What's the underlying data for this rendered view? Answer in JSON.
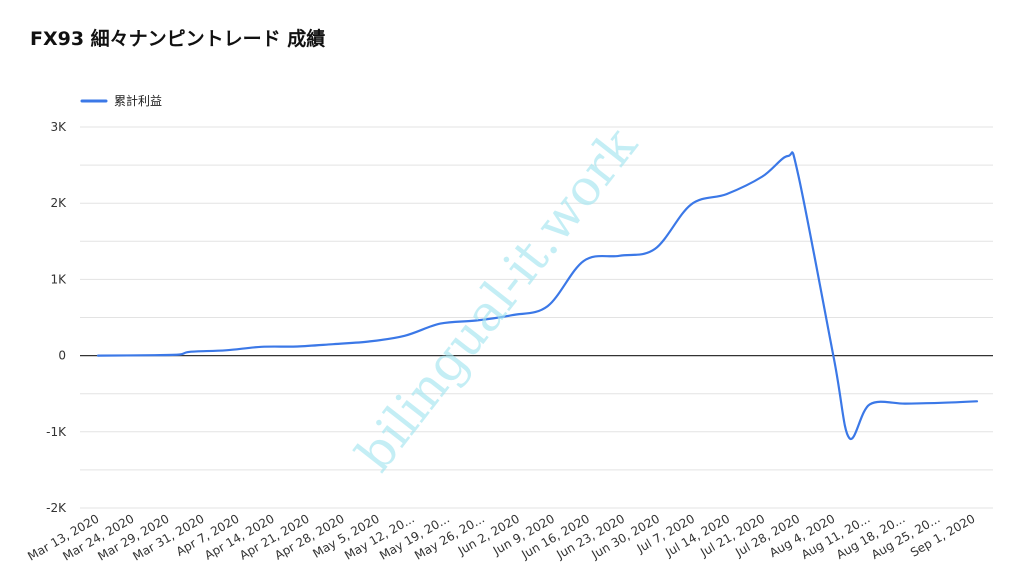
{
  "chart_data": {
    "type": "line",
    "title": "FX93 細々ナンピントレード 成績",
    "xlabel": "",
    "ylabel": "",
    "legend_position": "top-left",
    "grid": true,
    "ylim": [
      -2000,
      3000
    ],
    "y_ticks": [
      {
        "value": 3000,
        "label": "3K"
      },
      {
        "value": 2000,
        "label": "2K"
      },
      {
        "value": 1000,
        "label": "1K"
      },
      {
        "value": 0,
        "label": "0"
      },
      {
        "value": -1000,
        "label": "-1K"
      },
      {
        "value": -2000,
        "label": "-2K"
      }
    ],
    "x_tick_labels": [
      "Mar 13, 2020",
      "Mar 24, 2020",
      "Mar 29, 2020",
      "Mar 31, 2020",
      "Apr 7, 2020",
      "Apr 14, 2020",
      "Apr 21, 2020",
      "Apr 28, 2020",
      "May 5, 2020",
      "May 12, 20...",
      "May 19, 20...",
      "May 26, 20...",
      "Jun 2, 2020",
      "Jun 9, 2020",
      "Jun 16, 2020",
      "Jun 23, 2020",
      "Jun 30, 2020",
      "Jul 7, 2020",
      "Jul 14, 2020",
      "Jul 21, 2020",
      "Jul 28, 2020",
      "Aug 4, 2020",
      "Aug 11, 20...",
      "Aug 18, 20...",
      "Aug 25, 20...",
      "Sep 1, 2020"
    ],
    "series": [
      {
        "name": "累計利益",
        "color": "#3b78e7",
        "points": [
          {
            "x": "Mar 13, 2020",
            "y": 0
          },
          {
            "x": "Mar 24, 2020",
            "y": 5
          },
          {
            "x": "Mar 29, 2020",
            "y": 15
          },
          {
            "x": "Mar 31, 2020",
            "y": 50
          },
          {
            "x": "Apr 7, 2020",
            "y": 70
          },
          {
            "x": "Apr 14, 2020",
            "y": 115
          },
          {
            "x": "Apr 21, 2020",
            "y": 120
          },
          {
            "x": "Apr 28, 2020",
            "y": 150
          },
          {
            "x": "May 5, 2020",
            "y": 185
          },
          {
            "x": "May 12, 2020",
            "y": 260
          },
          {
            "x": "May 19, 2020",
            "y": 420
          },
          {
            "x": "May 26, 2020",
            "y": 460
          },
          {
            "x": "Jun 2, 2020",
            "y": 530
          },
          {
            "x": "Jun 9, 2020",
            "y": 650
          },
          {
            "x": "Jun 16, 2020",
            "y": 1240
          },
          {
            "x": "Jun 23, 2020",
            "y": 1310
          },
          {
            "x": "Jun 30, 2020",
            "y": 1400
          },
          {
            "x": "Jul 7, 2020",
            "y": 1980
          },
          {
            "x": "Jul 14, 2020",
            "y": 2120
          },
          {
            "x": "Jul 21, 2020",
            "y": 2350
          },
          {
            "x": "Jul 26, 2020",
            "y": 2620
          },
          {
            "x": "Jul 28, 2020",
            "y": 2380
          },
          {
            "x": "Aug 4, 2020",
            "y": -40
          },
          {
            "x": "Aug 7, 2020",
            "y": -1080
          },
          {
            "x": "Aug 11, 2020",
            "y": -640
          },
          {
            "x": "Aug 18, 2020",
            "y": -630
          },
          {
            "x": "Aug 25, 2020",
            "y": -620
          },
          {
            "x": "Sep 1, 2020",
            "y": -600
          }
        ]
      }
    ]
  },
  "watermark": {
    "text": "bilingual-it.work",
    "color": "#a6e6f0"
  }
}
